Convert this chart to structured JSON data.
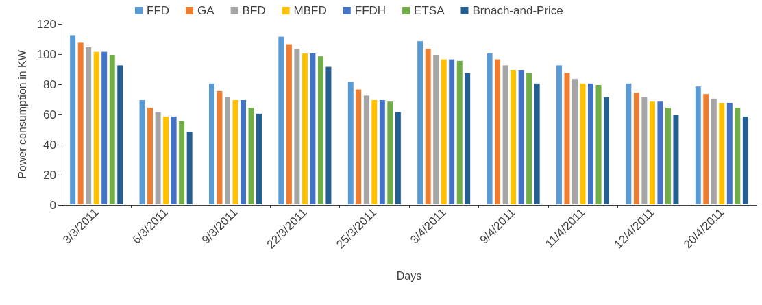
{
  "chart_data": {
    "type": "bar",
    "xlabel": "Days",
    "ylabel": "Power consumption in KW",
    "categories": [
      "3/3/2011",
      "6/3/2011",
      "9/3/2011",
      "22/3/2011",
      "25/3/2011",
      "3/4/2011",
      "9/4/2011",
      "11/4/2011",
      "12/4/2011",
      "20/4/2011"
    ],
    "series": [
      {
        "name": "FFD",
        "color": "#5b9bd5",
        "values": [
          113,
          70,
          81,
          112,
          82,
          109,
          101,
          93,
          81,
          79
        ]
      },
      {
        "name": "GA",
        "color": "#ed7d31",
        "values": [
          108,
          65,
          76,
          107,
          77,
          104,
          97,
          88,
          75,
          74
        ]
      },
      {
        "name": "BFD",
        "color": "#a5a5a5",
        "values": [
          105,
          62,
          72,
          104,
          73,
          100,
          93,
          84,
          72,
          71
        ]
      },
      {
        "name": "MBFD",
        "color": "#ffc000",
        "values": [
          102,
          59,
          70,
          101,
          70,
          97,
          90,
          81,
          69,
          68
        ]
      },
      {
        "name": "FFDH",
        "color": "#4472c4",
        "values": [
          102,
          59,
          70,
          101,
          70,
          97,
          90,
          81,
          69,
          68
        ]
      },
      {
        "name": "ETSA",
        "color": "#70ad47",
        "values": [
          100,
          56,
          65,
          99,
          69,
          96,
          88,
          80,
          65,
          65
        ]
      },
      {
        "name": "Brnach-and-Price",
        "color": "#255e91",
        "values": [
          93,
          49,
          61,
          92,
          62,
          88,
          81,
          72,
          60,
          59
        ]
      }
    ],
    "ylim": [
      0,
      120
    ],
    "yticks": [
      0,
      20,
      40,
      60,
      80,
      100,
      120
    ],
    "grid": false,
    "legend": "top"
  }
}
